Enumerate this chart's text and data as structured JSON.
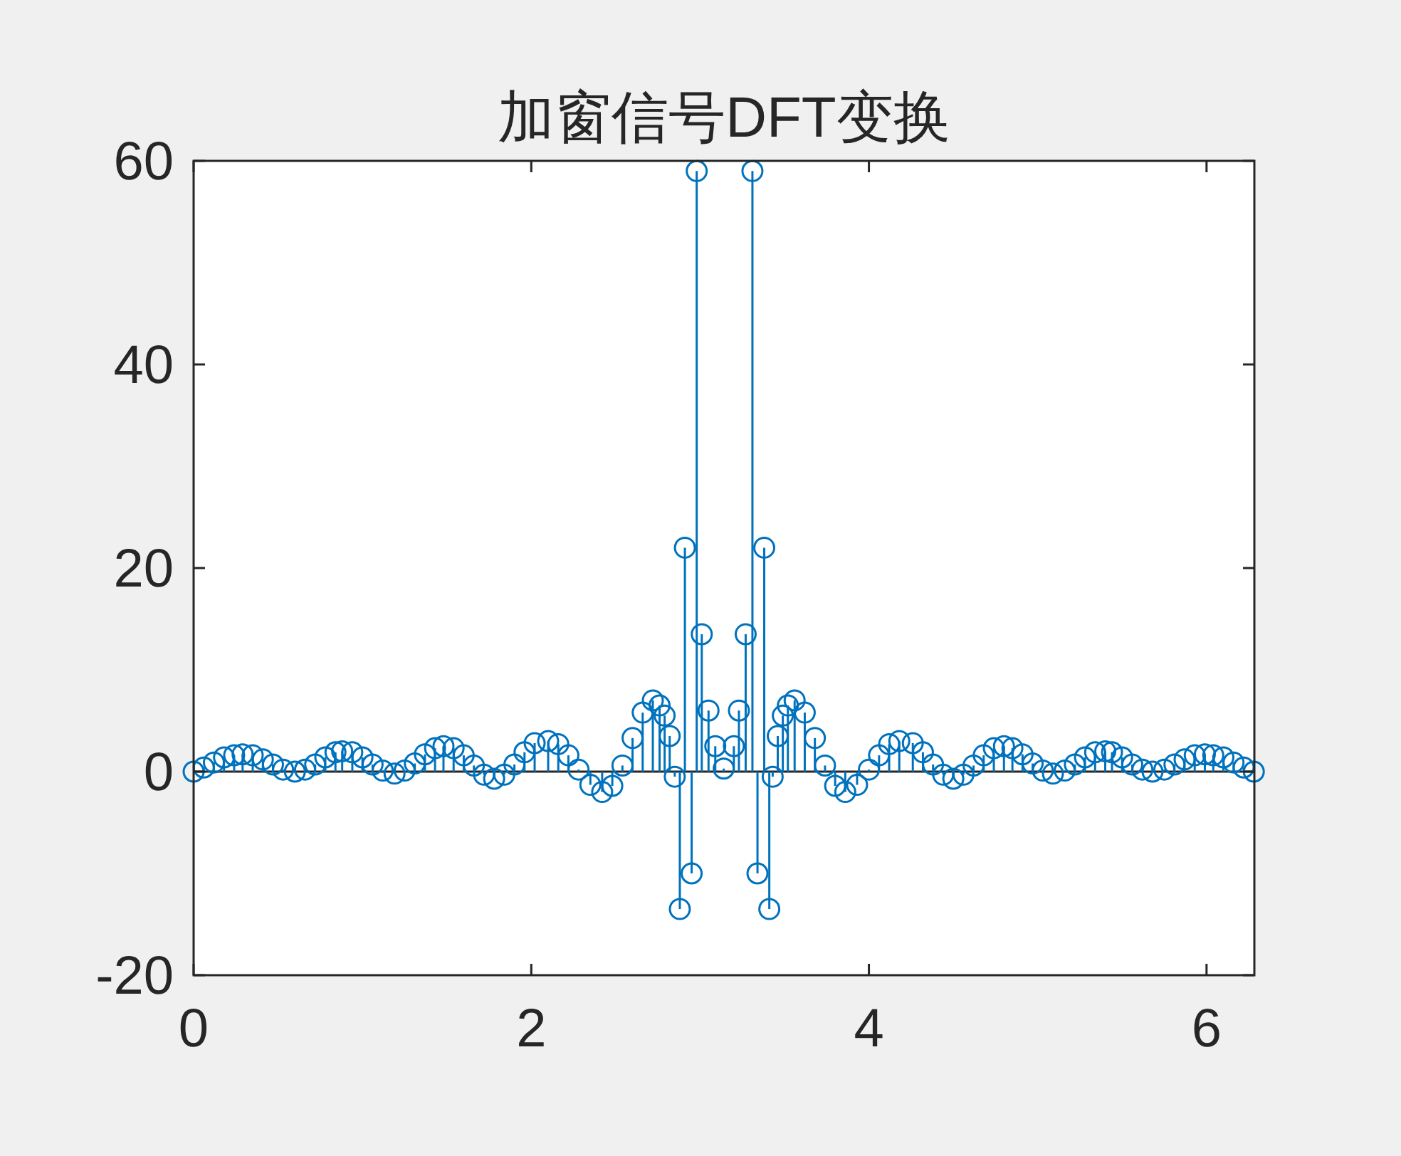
{
  "chart_data": {
    "type": "lollipop",
    "title": "加窗信号DFT变换",
    "x": [
      0.0,
      0.06,
      0.12,
      0.18,
      0.24,
      0.29,
      0.35,
      0.41,
      0.47,
      0.53,
      0.6,
      0.66,
      0.72,
      0.78,
      0.84,
      0.88,
      0.94,
      1.0,
      1.06,
      1.12,
      1.19,
      1.25,
      1.31,
      1.37,
      1.43,
      1.48,
      1.54,
      1.6,
      1.66,
      1.72,
      1.78,
      1.84,
      1.9,
      1.96,
      2.02,
      2.1,
      2.16,
      2.22,
      2.28,
      2.35,
      2.42,
      2.48,
      2.54,
      2.6,
      2.66,
      2.72,
      2.76,
      2.79,
      2.82,
      2.85,
      2.88,
      2.91,
      2.95,
      2.98,
      3.01,
      3.05,
      3.09,
      3.14,
      3.2,
      3.23,
      3.27,
      3.31,
      3.34,
      3.38,
      3.41,
      3.43,
      3.46,
      3.49,
      3.52,
      3.56,
      3.62,
      3.68,
      3.74,
      3.8,
      3.86,
      3.93,
      4.0,
      4.06,
      4.12,
      4.18,
      4.26,
      4.32,
      4.38,
      4.44,
      4.5,
      4.56,
      4.62,
      4.68,
      4.74,
      4.8,
      4.85,
      4.91,
      4.97,
      5.03,
      5.09,
      5.16,
      5.22,
      5.28,
      5.34,
      5.4,
      5.44,
      5.5,
      5.56,
      5.62,
      5.68,
      5.75,
      5.81,
      5.87,
      5.93,
      5.99,
      6.04,
      6.1,
      6.16,
      6.22,
      6.28
    ],
    "values": [
      0.0,
      0.4,
      0.9,
      1.4,
      1.6,
      1.7,
      1.6,
      1.2,
      0.7,
      0.2,
      0.0,
      0.2,
      0.7,
      1.4,
      1.9,
      2.0,
      1.9,
      1.4,
      0.7,
      0.1,
      -0.2,
      0.1,
      0.8,
      1.7,
      2.3,
      2.5,
      2.3,
      1.6,
      0.6,
      -0.3,
      -0.7,
      -0.3,
      0.7,
      1.9,
      2.8,
      3.0,
      2.7,
      1.6,
      0.2,
      -1.3,
      -2.0,
      -1.4,
      0.6,
      3.3,
      5.8,
      7.0,
      6.5,
      5.5,
      3.5,
      -0.5,
      -13.5,
      22,
      -10,
      59,
      13.5,
      6,
      2.5,
      0.3,
      2.5,
      6,
      13.5,
      59,
      -10,
      22,
      -13.5,
      -0.5,
      3.5,
      5.5,
      6.5,
      7.0,
      5.8,
      3.3,
      0.6,
      -1.4,
      -2.0,
      -1.3,
      0.2,
      1.6,
      2.7,
      3.0,
      2.8,
      1.9,
      0.7,
      -0.3,
      -0.7,
      -0.3,
      0.6,
      1.6,
      2.3,
      2.5,
      2.3,
      1.7,
      0.8,
      0.1,
      -0.2,
      0.1,
      0.7,
      1.4,
      1.9,
      2.0,
      1.9,
      1.4,
      0.7,
      0.2,
      0.0,
      0.2,
      0.7,
      1.2,
      1.6,
      1.7,
      1.6,
      1.4,
      0.9,
      0.4,
      0.0
    ],
    "color": "#0072bd",
    "marker": "circle",
    "xlim": [
      0,
      6.2832
    ],
    "ylim": [
      -20,
      60
    ],
    "xticks": [
      0,
      2,
      4,
      6
    ],
    "yticks": [
      -20,
      0,
      20,
      40,
      60
    ]
  }
}
